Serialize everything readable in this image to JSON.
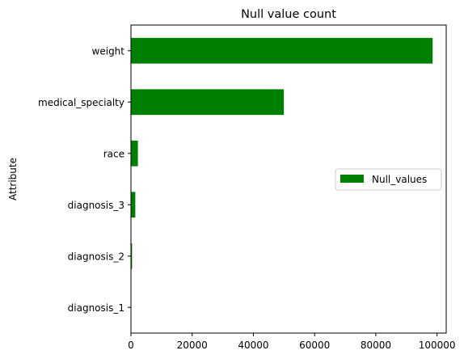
{
  "chart_data": {
    "type": "bar",
    "orientation": "horizontal",
    "title": "Null value count",
    "xlabel": "",
    "ylabel": "Attribute",
    "categories": [
      "weight",
      "medical_specialty",
      "race",
      "diagnosis_3",
      "diagnosis_2",
      "diagnosis_1"
    ],
    "series": [
      {
        "name": "Null_values",
        "values": [
          98569,
          49949,
          2273,
          1423,
          358,
          21
        ]
      }
    ],
    "xlim": [
      0,
      103000
    ],
    "xticks": [
      0,
      20000,
      40000,
      60000,
      80000,
      100000
    ],
    "grid": false,
    "legend_position": "center-right",
    "bar_color": "#008000"
  }
}
